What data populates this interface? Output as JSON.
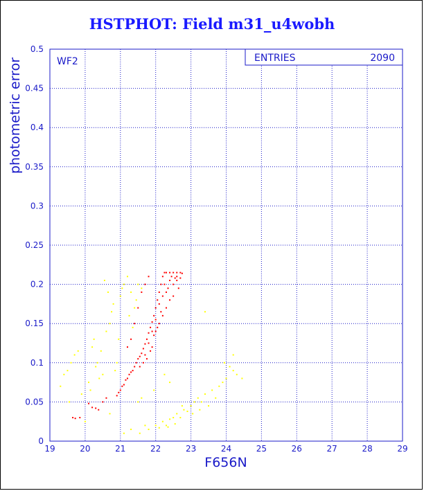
{
  "title": "HSTPHOT: Field m31_u4wobh",
  "panel_label": "WF2",
  "stats": {
    "label": "ENTRIES",
    "value": "2090"
  },
  "colors": {
    "axis": "#1a1ac8",
    "title": "#1a1aff",
    "grid": "#1a1ac8",
    "main": "#ff0000",
    "outlier": "#ffff00"
  },
  "chart_data": {
    "type": "scatter",
    "title": "HSTPHOT: Field m31_u4wobh",
    "xlabel": "F656N",
    "ylabel": "photometric error",
    "xlim": [
      19,
      29
    ],
    "ylim": [
      0,
      0.5
    ],
    "xticks": [
      "19",
      "20",
      "21",
      "22",
      "23",
      "24",
      "25",
      "26",
      "27",
      "28",
      "29"
    ],
    "yticks": [
      "0",
      "0.05",
      "0.1",
      "0.15",
      "0.2",
      "0.25",
      "0.3",
      "0.35",
      "0.4",
      "0.45",
      "0.5"
    ],
    "grid": true,
    "entries": 2090,
    "series": [
      {
        "color": "#ff0000",
        "points": [
          [
            19.65,
            0.03
          ],
          [
            19.72,
            0.029
          ],
          [
            19.85,
            0.03
          ],
          [
            20.1,
            0.048
          ],
          [
            20.2,
            0.043
          ],
          [
            20.3,
            0.042
          ],
          [
            20.38,
            0.04
          ],
          [
            20.5,
            0.05
          ],
          [
            20.6,
            0.055
          ],
          [
            20.9,
            0.058
          ],
          [
            20.95,
            0.062
          ],
          [
            21.0,
            0.065
          ],
          [
            21.05,
            0.07
          ],
          [
            21.1,
            0.072
          ],
          [
            21.15,
            0.078
          ],
          [
            21.2,
            0.08
          ],
          [
            21.25,
            0.085
          ],
          [
            21.3,
            0.088
          ],
          [
            21.35,
            0.09
          ],
          [
            21.4,
            0.095
          ],
          [
            21.45,
            0.1
          ],
          [
            21.5,
            0.105
          ],
          [
            21.55,
            0.108
          ],
          [
            21.6,
            0.112
          ],
          [
            21.65,
            0.118
          ],
          [
            21.7,
            0.124
          ],
          [
            21.75,
            0.13
          ],
          [
            21.8,
            0.138
          ],
          [
            21.85,
            0.145
          ],
          [
            21.9,
            0.152
          ],
          [
            21.95,
            0.16
          ],
          [
            22.0,
            0.17
          ],
          [
            22.05,
            0.18
          ],
          [
            22.1,
            0.19
          ],
          [
            22.15,
            0.2
          ],
          [
            22.2,
            0.21
          ],
          [
            22.25,
            0.215
          ],
          [
            22.3,
            0.215
          ],
          [
            22.4,
            0.215
          ],
          [
            22.5,
            0.215
          ],
          [
            22.6,
            0.215
          ],
          [
            22.7,
            0.215
          ],
          [
            22.75,
            0.214
          ],
          [
            21.8,
            0.21
          ],
          [
            21.7,
            0.2
          ],
          [
            21.6,
            0.19
          ],
          [
            21.5,
            0.17
          ],
          [
            21.4,
            0.15
          ],
          [
            21.3,
            0.13
          ],
          [
            21.2,
            0.12
          ],
          [
            22.3,
            0.19
          ],
          [
            22.5,
            0.2
          ],
          [
            22.6,
            0.205
          ],
          [
            22.4,
            0.18
          ],
          [
            22.2,
            0.16
          ],
          [
            22.0,
            0.14
          ],
          [
            21.9,
            0.12
          ],
          [
            21.7,
            0.11
          ],
          [
            22.1,
            0.15
          ],
          [
            22.3,
            0.17
          ],
          [
            22.5,
            0.185
          ],
          [
            22.65,
            0.195
          ],
          [
            22.1,
            0.175
          ],
          [
            21.95,
            0.135
          ],
          [
            21.85,
            0.115
          ],
          [
            22.25,
            0.2
          ],
          [
            22.45,
            0.21
          ],
          [
            22.55,
            0.208
          ],
          [
            22.35,
            0.195
          ],
          [
            22.15,
            0.165
          ],
          [
            21.75,
            0.105
          ],
          [
            21.65,
            0.1
          ],
          [
            21.55,
            0.095
          ],
          [
            22.05,
            0.145
          ],
          [
            22.2,
            0.185
          ],
          [
            22.4,
            0.205
          ],
          [
            22.6,
            0.21
          ],
          [
            22.7,
            0.208
          ],
          [
            22.0,
            0.155
          ],
          [
            21.9,
            0.14
          ],
          [
            21.8,
            0.125
          ]
        ]
      },
      {
        "color": "#ffff00",
        "points": [
          [
            19.3,
            0.07
          ],
          [
            19.4,
            0.085
          ],
          [
            19.5,
            0.09
          ],
          [
            19.6,
            0.1
          ],
          [
            19.7,
            0.11
          ],
          [
            19.8,
            0.115
          ],
          [
            19.55,
            0.05
          ],
          [
            19.9,
            0.06
          ],
          [
            20.1,
            0.075
          ],
          [
            20.2,
            0.12
          ],
          [
            20.25,
            0.13
          ],
          [
            20.3,
            0.095
          ],
          [
            20.4,
            0.08
          ],
          [
            20.5,
            0.085
          ],
          [
            20.6,
            0.14
          ],
          [
            20.7,
            0.15
          ],
          [
            20.75,
            0.165
          ],
          [
            20.8,
            0.175
          ],
          [
            20.85,
            0.09
          ],
          [
            20.9,
            0.1
          ],
          [
            21.0,
            0.185
          ],
          [
            21.05,
            0.195
          ],
          [
            21.1,
            0.2
          ],
          [
            21.2,
            0.21
          ],
          [
            21.3,
            0.19
          ],
          [
            21.4,
            0.17
          ],
          [
            21.45,
            0.18
          ],
          [
            21.5,
            0.2
          ],
          [
            21.6,
            0.195
          ],
          [
            20.55,
            0.205
          ],
          [
            20.65,
            0.19
          ],
          [
            20.45,
            0.115
          ],
          [
            20.35,
            0.1
          ],
          [
            20.95,
            0.13
          ],
          [
            21.25,
            0.16
          ],
          [
            21.35,
            0.145
          ],
          [
            20.15,
            0.065
          ],
          [
            21.5,
            0.05
          ],
          [
            21.6,
            0.055
          ],
          [
            21.7,
            0.02
          ],
          [
            21.8,
            0.015
          ],
          [
            22.0,
            0.02
          ],
          [
            22.1,
            0.017
          ],
          [
            22.2,
            0.025
          ],
          [
            22.3,
            0.02
          ],
          [
            22.4,
            0.028
          ],
          [
            22.5,
            0.03
          ],
          [
            22.6,
            0.035
          ],
          [
            22.7,
            0.03
          ],
          [
            22.8,
            0.04
          ],
          [
            22.9,
            0.038
          ],
          [
            23.0,
            0.045
          ],
          [
            23.1,
            0.05
          ],
          [
            23.2,
            0.055
          ],
          [
            23.3,
            0.05
          ],
          [
            23.4,
            0.06
          ],
          [
            23.5,
            0.045
          ],
          [
            23.6,
            0.065
          ],
          [
            23.7,
            0.055
          ],
          [
            23.8,
            0.07
          ],
          [
            23.9,
            0.075
          ],
          [
            24.0,
            0.08
          ],
          [
            24.1,
            0.095
          ],
          [
            24.2,
            0.09
          ],
          [
            24.3,
            0.085
          ],
          [
            24.45,
            0.08
          ],
          [
            23.95,
            0.1
          ],
          [
            24.2,
            0.11
          ],
          [
            22.35,
            0.018
          ],
          [
            22.55,
            0.022
          ],
          [
            22.75,
            0.045
          ],
          [
            23.05,
            0.035
          ],
          [
            23.25,
            0.04
          ],
          [
            21.1,
            0.01
          ],
          [
            21.3,
            0.015
          ],
          [
            20.7,
            0.035
          ],
          [
            21.95,
            0.065
          ],
          [
            22.4,
            0.075
          ],
          [
            22.25,
            0.085
          ],
          [
            23.4,
            0.165
          ],
          [
            21.55,
            0.01
          ],
          [
            20.0,
            0.025
          ]
        ]
      }
    ]
  }
}
